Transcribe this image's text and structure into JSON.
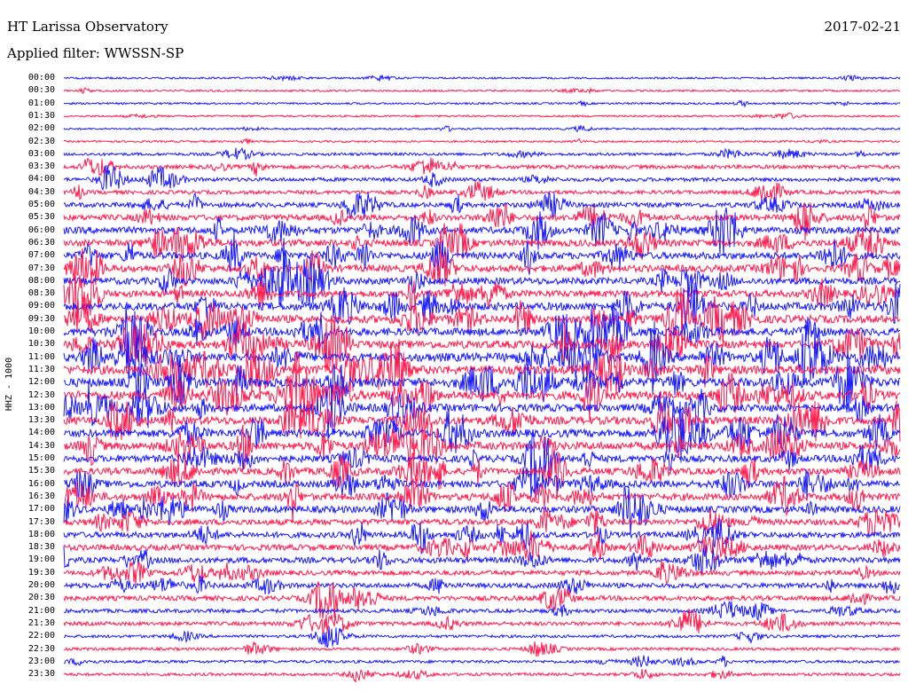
{
  "header": {
    "station": "HT Larissa Observatory",
    "date": "2017-02-21",
    "filter": "Applied filter: WWSSN-SP"
  },
  "channel_label": "HHZ - 1000",
  "colors": {
    "trace_a": "#1a1aff",
    "trace_b": "#ff1a4d",
    "background": "#ffffff"
  },
  "time_labels": [
    "00:00",
    "00:30",
    "01:00",
    "01:30",
    "02:00",
    "02:30",
    "03:00",
    "03:30",
    "04:00",
    "04:30",
    "05:00",
    "05:30",
    "06:00",
    "06:30",
    "07:00",
    "07:30",
    "08:00",
    "08:30",
    "09:00",
    "09:30",
    "10:00",
    "10:30",
    "11:00",
    "11:30",
    "12:00",
    "12:30",
    "13:00",
    "13:30",
    "14:00",
    "14:30",
    "15:00",
    "15:30",
    "16:00",
    "16:30",
    "17:00",
    "17:30",
    "18:00",
    "18:30",
    "19:00",
    "19:30",
    "20:00",
    "20:30",
    "21:00",
    "21:30",
    "22:00",
    "22:30",
    "23:00",
    "23:30"
  ],
  "trace_activity": [
    1,
    1,
    1,
    1,
    1,
    1,
    2,
    3,
    3,
    3,
    4,
    5,
    6,
    6,
    6,
    6,
    6,
    6,
    7,
    7,
    7,
    7,
    8,
    8,
    8,
    8,
    7,
    7,
    7,
    7,
    6,
    6,
    6,
    6,
    6,
    5,
    5,
    5,
    5,
    4,
    4,
    4,
    3,
    3,
    2,
    2,
    2,
    2
  ]
}
